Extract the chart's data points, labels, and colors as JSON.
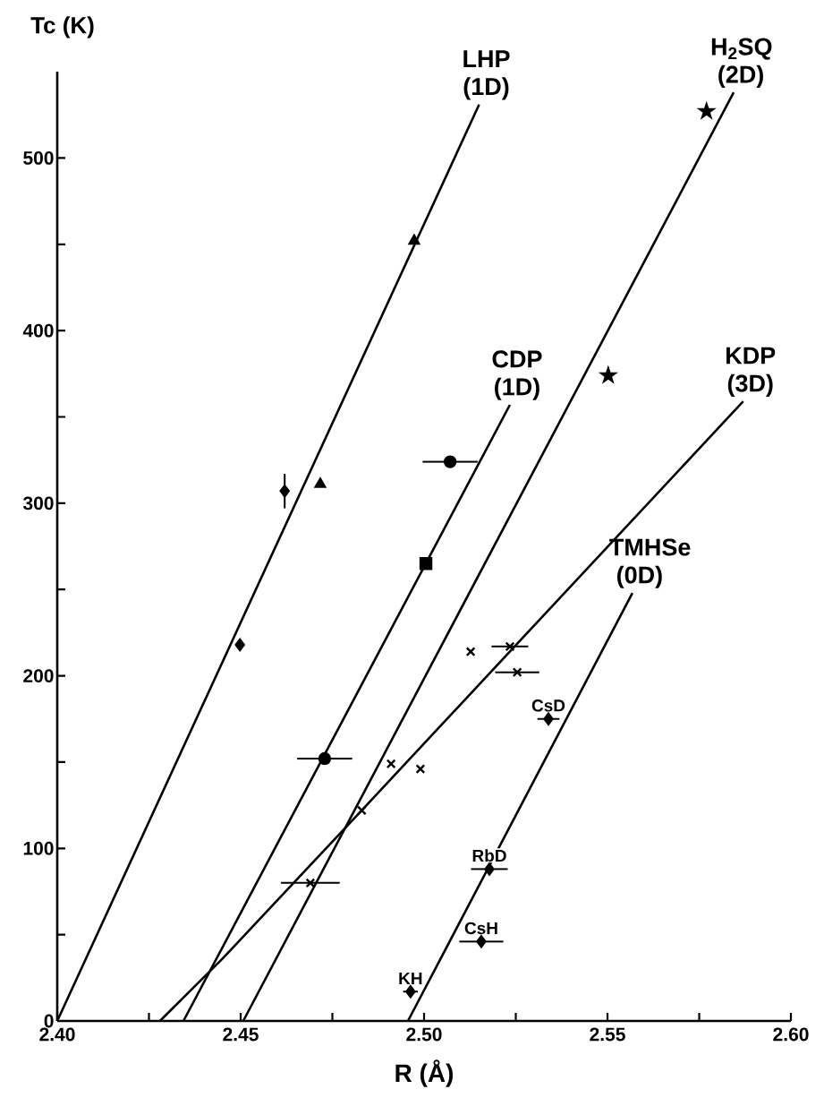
{
  "chart_data": {
    "type": "scatter",
    "xlabel": "R (Å)",
    "ylabel": "Tc (K)",
    "xlim": [
      2.4,
      2.6
    ],
    "ylim": [
      0,
      550
    ],
    "xticks": [
      {
        "value": 2.4,
        "label": "2.40"
      },
      {
        "value": 2.425,
        "label": null
      },
      {
        "value": 2.45,
        "label": "2.45"
      },
      {
        "value": 2.475,
        "label": null
      },
      {
        "value": 2.5,
        "label": "2.50"
      },
      {
        "value": 2.525,
        "label": null
      },
      {
        "value": 2.55,
        "label": "2.55"
      },
      {
        "value": 2.575,
        "label": null
      },
      {
        "value": 2.6,
        "label": "2.60"
      }
    ],
    "yticks": [
      0,
      {
        "value": 50,
        "label": null
      },
      100,
      {
        "value": 150,
        "label": null
      },
      200,
      {
        "value": 250,
        "label": null
      },
      300,
      {
        "value": 350,
        "label": null
      },
      400,
      {
        "value": 450,
        "label": null
      },
      500
    ],
    "grid": false,
    "series": [
      {
        "name": "LHP (1D)",
        "type": "line",
        "color": "#000000",
        "marker": "none",
        "x": [
          2.4,
          2.515
        ],
        "values": [
          0,
          531
        ]
      },
      {
        "name": "H$_{2}$SQ (2D)",
        "type": "line",
        "color": "#000000",
        "marker": "none",
        "x": [
          2.4507,
          2.5844
        ],
        "values": [
          0,
          538
        ]
      },
      {
        "name": "CDP (1D)",
        "type": "line",
        "color": "#000000",
        "marker": "none",
        "x": [
          2.4344,
          2.5234
        ],
        "values": [
          0,
          357
        ]
      },
      {
        "name": "KDP (3D)",
        "type": "line",
        "color": "#000000",
        "marker": "none",
        "x": [
          2.428,
          2.445,
          2.483,
          2.587
        ],
        "values": [
          0,
          36,
          122,
          359
        ]
      },
      {
        "name": "TMHSe (0D)",
        "type": "line",
        "color": "#000000",
        "marker": "none",
        "x": [
          2.4956,
          2.5568
        ],
        "values": [
          0,
          248
        ]
      },
      {
        "color": "#000000",
        "marker": "triangle",
        "x": [
          2.4973,
          2.4717
        ],
        "values": [
          452,
          311
        ]
      },
      {
        "color": "#000000",
        "marker": "diamond",
        "x": [
          2.462,
          2.4498
        ],
        "values": [
          307,
          218
        ],
        "errors": [
          10,
          null
        ]
      },
      {
        "color": "#000000",
        "marker": "circle",
        "x": [
          2.5071,
          2.4729
        ],
        "values": [
          324,
          152
        ],
        "xerrors": [
          0.0075,
          0.0075
        ]
      },
      {
        "color": "#000000",
        "marker": "square",
        "x": [
          2.5005
        ],
        "values": [
          265
        ]
      },
      {
        "color": "#000000",
        "marker": "cross",
        "x": [
          2.491,
          2.499,
          2.483,
          2.5127,
          2.5234,
          2.5254,
          2.469
        ],
        "values": [
          149,
          146,
          122,
          214,
          217,
          202,
          80
        ],
        "xerrors": [
          null,
          null,
          null,
          null,
          0.005,
          0.006,
          0.008
        ]
      },
      {
        "color": "#000000",
        "marker": "star",
        "x": [
          2.577,
          2.5502
        ],
        "values": [
          527,
          374
        ]
      },
      {
        "color": "#000000",
        "marker": "diamond",
        "x": [
          2.5339,
          2.5178,
          2.5156,
          2.4963
        ],
        "values": [
          175,
          88,
          46,
          17
        ],
        "xerrors": [
          0.003,
          0.005,
          0.006,
          0.002
        ]
      }
    ],
    "annotations": [
      {
        "text": "CsD",
        "x": 2.5339,
        "y": 175
      },
      {
        "text": "RbD",
        "x": 2.5178,
        "y": 88
      },
      {
        "text": "CsH",
        "x": 2.5156,
        "y": 46
      },
      {
        "text": "KH",
        "x": 2.4963,
        "y": 17
      }
    ]
  }
}
